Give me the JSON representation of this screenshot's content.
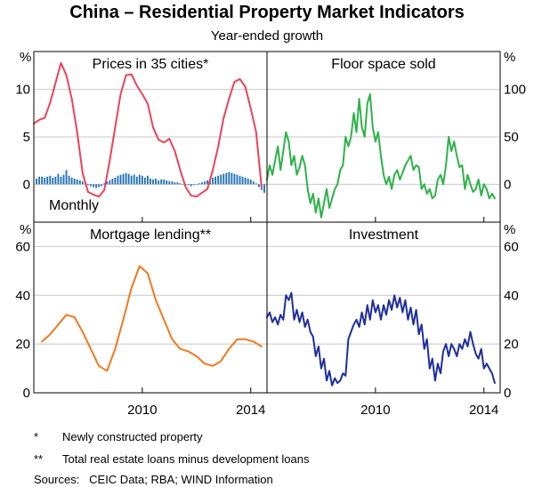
{
  "title": "China – Residential Property Market Indicators",
  "subtitle": "Year-ended growth",
  "colors": {
    "prices": "#e8445a",
    "monthly": "#1f6fb5",
    "floor": "#2eb24a",
    "mortgage": "#f07820",
    "investment": "#1f2f9c"
  },
  "footnotes": [
    {
      "marker": "*",
      "text": "Newly constructed property"
    },
    {
      "marker": "**",
      "text": "Total real estate loans minus development loans"
    }
  ],
  "sources": "Sources:   CEIC Data; RBA; WIND Information",
  "x_axis": {
    "range": [
      2006.0,
      2014.6
    ],
    "ticks": [
      2010,
      2014
    ],
    "tick_labels": [
      "2010",
      "2014"
    ]
  },
  "chart_data": [
    {
      "type": "line",
      "title": "Prices in 35 cities*",
      "unit_label": "%",
      "ylim": [
        -4,
        14
      ],
      "yticks": [
        0,
        5,
        10
      ],
      "grid": true,
      "series": [
        {
          "name": "",
          "color_key": "prices",
          "x": [
            2006.0,
            2006.2,
            2006.4,
            2006.6,
            2006.8,
            2007.0,
            2007.2,
            2007.4,
            2007.6,
            2007.8,
            2008.0,
            2008.2,
            2008.4,
            2008.6,
            2008.8,
            2009.0,
            2009.2,
            2009.4,
            2009.6,
            2009.8,
            2010.0,
            2010.2,
            2010.4,
            2010.6,
            2010.8,
            2011.0,
            2011.2,
            2011.4,
            2011.6,
            2011.8,
            2012.0,
            2012.2,
            2012.4,
            2012.6,
            2012.8,
            2013.0,
            2013.2,
            2013.4,
            2013.6,
            2013.8,
            2014.0,
            2014.2,
            2014.4
          ],
          "y": [
            6.4,
            6.8,
            7.0,
            8.6,
            10.7,
            12.8,
            11.5,
            9.0,
            5.5,
            1.2,
            -0.8,
            -1.1,
            -1.3,
            -0.6,
            2.5,
            6.0,
            9.5,
            11.5,
            11.6,
            10.4,
            9.5,
            8.5,
            6.0,
            4.7,
            4.4,
            4.8,
            3.5,
            1.5,
            -0.3,
            -1.2,
            -1.3,
            -0.9,
            -0.5,
            1.5,
            4.0,
            7.0,
            9.0,
            10.8,
            11.1,
            10.3,
            8.0,
            5.5,
            -0.3
          ]
        },
        {
          "name": "Monthly",
          "color_key": "monthly",
          "kind": "bar",
          "x": [
            2006.1,
            2006.2,
            2006.3,
            2006.4,
            2006.5,
            2006.6,
            2006.7,
            2006.8,
            2006.9,
            2007.0,
            2007.1,
            2007.2,
            2007.3,
            2007.4,
            2007.5,
            2007.6,
            2007.7,
            2007.8,
            2007.9,
            2008.0,
            2008.1,
            2008.2,
            2008.3,
            2008.4,
            2008.5,
            2008.6,
            2008.7,
            2008.8,
            2008.9,
            2009.0,
            2009.1,
            2009.2,
            2009.3,
            2009.4,
            2009.5,
            2009.6,
            2009.7,
            2009.8,
            2009.9,
            2010.0,
            2010.1,
            2010.2,
            2010.3,
            2010.4,
            2010.5,
            2010.6,
            2010.7,
            2010.8,
            2010.9,
            2011.0,
            2011.1,
            2011.2,
            2011.3,
            2011.4,
            2011.5,
            2011.6,
            2011.7,
            2011.8,
            2011.9,
            2012.0,
            2012.1,
            2012.2,
            2012.3,
            2012.4,
            2012.5,
            2012.6,
            2012.7,
            2012.8,
            2012.9,
            2013.0,
            2013.1,
            2013.2,
            2013.3,
            2013.4,
            2013.5,
            2013.6,
            2013.7,
            2013.8,
            2013.9,
            2014.0,
            2014.1,
            2014.2,
            2014.3,
            2014.4,
            2014.5
          ],
          "y": [
            0.6,
            0.8,
            0.8,
            0.7,
            0.8,
            0.9,
            0.7,
            0.8,
            1.1,
            0.8,
            1.0,
            1.5,
            0.9,
            0.7,
            0.6,
            0.5,
            0.4,
            0.3,
            0.2,
            -0.1,
            -0.2,
            -0.3,
            -0.4,
            -0.3,
            -0.2,
            0.1,
            0.3,
            0.4,
            0.6,
            0.7,
            0.9,
            1.0,
            1.1,
            1.2,
            1.1,
            0.9,
            1.0,
            0.8,
            1.0,
            0.9,
            0.7,
            0.9,
            0.6,
            0.5,
            0.6,
            0.4,
            0.5,
            0.5,
            0.4,
            0.3,
            0.3,
            0.2,
            0.2,
            0.1,
            0.0,
            -0.1,
            -0.1,
            -0.2,
            -0.1,
            0.0,
            0.1,
            0.2,
            0.3,
            0.4,
            0.6,
            0.7,
            0.8,
            0.9,
            1.0,
            1.1,
            1.2,
            1.3,
            1.2,
            1.1,
            1.0,
            0.9,
            0.8,
            0.7,
            0.6,
            0.5,
            0.3,
            0.1,
            -0.3,
            -0.6,
            -0.9
          ]
        }
      ]
    },
    {
      "type": "line",
      "title": "Floor space sold",
      "unit_label": "%",
      "ylim": [
        -40,
        140
      ],
      "yticks": [
        0,
        50,
        100
      ],
      "grid": true,
      "series": [
        {
          "name": "",
          "color_key": "floor",
          "x": [
            2006.0,
            2006.1,
            2006.2,
            2006.3,
            2006.4,
            2006.5,
            2006.6,
            2006.7,
            2006.8,
            2006.9,
            2007.0,
            2007.1,
            2007.2,
            2007.3,
            2007.4,
            2007.5,
            2007.6,
            2007.7,
            2007.8,
            2007.9,
            2008.0,
            2008.1,
            2008.2,
            2008.3,
            2008.4,
            2008.5,
            2008.6,
            2008.7,
            2008.8,
            2008.9,
            2009.0,
            2009.1,
            2009.2,
            2009.3,
            2009.4,
            2009.5,
            2009.6,
            2009.7,
            2009.8,
            2009.9,
            2010.0,
            2010.1,
            2010.2,
            2010.3,
            2010.4,
            2010.5,
            2010.6,
            2010.7,
            2010.8,
            2010.9,
            2011.0,
            2011.1,
            2011.2,
            2011.3,
            2011.4,
            2011.5,
            2011.6,
            2011.7,
            2011.8,
            2011.9,
            2012.0,
            2012.1,
            2012.2,
            2012.3,
            2012.4,
            2012.5,
            2012.6,
            2012.7,
            2012.8,
            2012.9,
            2013.0,
            2013.1,
            2013.2,
            2013.3,
            2013.4,
            2013.5,
            2013.6,
            2013.7,
            2013.8,
            2013.9,
            2014.0,
            2014.1,
            2014.2,
            2014.3,
            2014.4
          ],
          "y": [
            5,
            20,
            10,
            25,
            40,
            15,
            35,
            55,
            45,
            20,
            30,
            10,
            18,
            30,
            20,
            -5,
            -20,
            -10,
            -30,
            -15,
            -35,
            -20,
            -5,
            -25,
            -15,
            -5,
            0,
            15,
            20,
            50,
            40,
            50,
            75,
            55,
            90,
            60,
            50,
            85,
            95,
            60,
            45,
            55,
            30,
            10,
            0,
            8,
            -5,
            10,
            15,
            5,
            12,
            20,
            25,
            30,
            15,
            20,
            18,
            -5,
            0,
            -10,
            -5,
            -15,
            -12,
            5,
            10,
            0,
            20,
            50,
            35,
            45,
            30,
            18,
            20,
            -5,
            10,
            0,
            -8,
            -5,
            5,
            -12,
            0,
            -5,
            -15,
            -10,
            -15
          ]
        }
      ]
    },
    {
      "type": "line",
      "title": "Mortgage lending**",
      "unit_label": "%",
      "ylim": [
        0,
        70
      ],
      "yticks": [
        0,
        20,
        40,
        60
      ],
      "grid": true,
      "series": [
        {
          "name": "",
          "color_key": "mortgage",
          "x": [
            2006.3,
            2006.6,
            2006.9,
            2007.2,
            2007.5,
            2007.8,
            2008.1,
            2008.4,
            2008.7,
            2009.0,
            2009.3,
            2009.6,
            2009.9,
            2010.2,
            2010.5,
            2010.8,
            2011.1,
            2011.4,
            2011.7,
            2012.0,
            2012.3,
            2012.6,
            2012.9,
            2013.2,
            2013.5,
            2013.8,
            2014.1,
            2014.4
          ],
          "y": [
            21,
            24,
            28,
            32,
            31,
            25,
            18,
            11,
            9,
            18,
            30,
            43,
            52,
            49,
            38,
            30,
            22,
            18,
            17,
            15,
            12,
            11,
            13,
            18,
            22,
            22,
            21,
            19
          ]
        }
      ]
    },
    {
      "type": "line",
      "title": "Investment",
      "unit_label": "%",
      "ylim": [
        0,
        70
      ],
      "yticks": [
        0,
        20,
        40,
        60
      ],
      "grid": true,
      "series": [
        {
          "name": "",
          "color_key": "investment",
          "x": [
            2006.0,
            2006.1,
            2006.2,
            2006.3,
            2006.4,
            2006.5,
            2006.6,
            2006.7,
            2006.8,
            2006.9,
            2007.0,
            2007.1,
            2007.2,
            2007.3,
            2007.4,
            2007.5,
            2007.6,
            2007.7,
            2007.8,
            2007.9,
            2008.0,
            2008.1,
            2008.2,
            2008.3,
            2008.4,
            2008.5,
            2008.6,
            2008.7,
            2008.8,
            2008.9,
            2009.0,
            2009.1,
            2009.2,
            2009.3,
            2009.4,
            2009.5,
            2009.6,
            2009.7,
            2009.8,
            2009.9,
            2010.0,
            2010.1,
            2010.2,
            2010.3,
            2010.4,
            2010.5,
            2010.6,
            2010.7,
            2010.8,
            2010.9,
            2011.0,
            2011.1,
            2011.2,
            2011.3,
            2011.4,
            2011.5,
            2011.6,
            2011.7,
            2011.8,
            2011.9,
            2012.0,
            2012.1,
            2012.2,
            2012.3,
            2012.4,
            2012.5,
            2012.6,
            2012.7,
            2012.8,
            2012.9,
            2013.0,
            2013.1,
            2013.2,
            2013.3,
            2013.4,
            2013.5,
            2013.6,
            2013.7,
            2013.8,
            2013.9,
            2014.0,
            2014.1,
            2014.2,
            2014.3,
            2014.4
          ],
          "y": [
            31,
            33,
            29,
            31,
            28,
            32,
            30,
            40,
            38,
            41,
            30,
            34,
            29,
            33,
            27,
            30,
            25,
            23,
            15,
            19,
            10,
            14,
            5,
            9,
            3,
            6,
            4,
            5,
            8,
            7,
            22,
            25,
            28,
            30,
            27,
            33,
            28,
            36,
            30,
            38,
            33,
            36,
            30,
            36,
            32,
            38,
            34,
            40,
            35,
            39,
            33,
            38,
            30,
            35,
            28,
            34,
            24,
            28,
            18,
            22,
            10,
            14,
            5,
            12,
            8,
            17,
            20,
            15,
            20,
            18,
            15,
            20,
            18,
            22,
            19,
            25,
            20,
            16,
            14,
            18,
            10,
            12,
            10,
            8,
            4
          ]
        }
      ]
    }
  ]
}
